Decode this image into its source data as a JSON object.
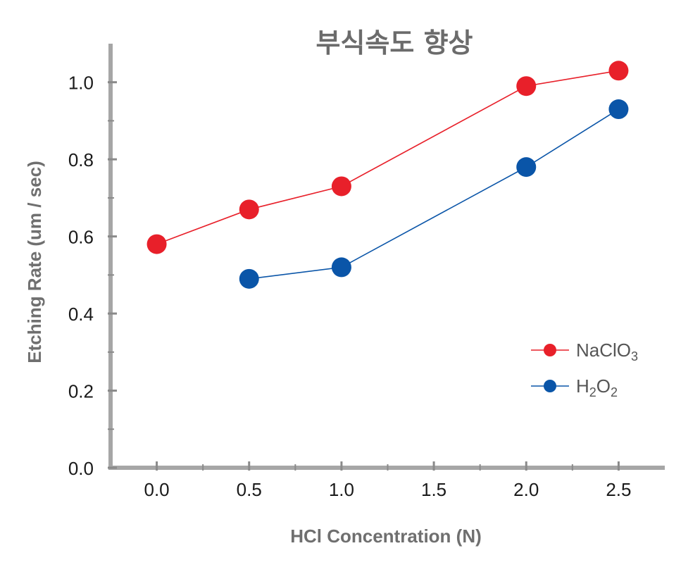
{
  "chart_data": {
    "type": "line",
    "title": "부식속도 향상",
    "xlabel": "HCl Concentration (N)",
    "ylabel": "Etching Rate (um / sec)",
    "xlim": [
      -0.25,
      2.75
    ],
    "ylim": [
      0.0,
      1.1
    ],
    "xticks": [
      0.0,
      0.5,
      1.0,
      1.5,
      2.0,
      2.5
    ],
    "xtick_labels": [
      "0.0",
      "0.5",
      "1.0",
      "1.5",
      "2.0",
      "2.5"
    ],
    "yticks": [
      0.0,
      0.2,
      0.4,
      0.6,
      0.8,
      1.0
    ],
    "ytick_labels": [
      "0.0",
      "0.2",
      "0.4",
      "0.6",
      "0.8",
      "1.0"
    ],
    "grid": false,
    "legend": "right",
    "series": [
      {
        "name": "NaClO3",
        "legend_base": "NaClO",
        "legend_sub": "3",
        "color": "#e8202a",
        "x": [
          0.0,
          0.5,
          1.0,
          2.0,
          2.5
        ],
        "y": [
          0.58,
          0.67,
          0.73,
          0.99,
          1.03
        ]
      },
      {
        "name": "H2O2",
        "legend_parts": [
          "H",
          "2",
          "O",
          "2"
        ],
        "color": "#0a55a8",
        "x": [
          0.5,
          1.0,
          2.0,
          2.5
        ],
        "y": [
          0.49,
          0.52,
          0.78,
          0.93
        ]
      }
    ]
  }
}
